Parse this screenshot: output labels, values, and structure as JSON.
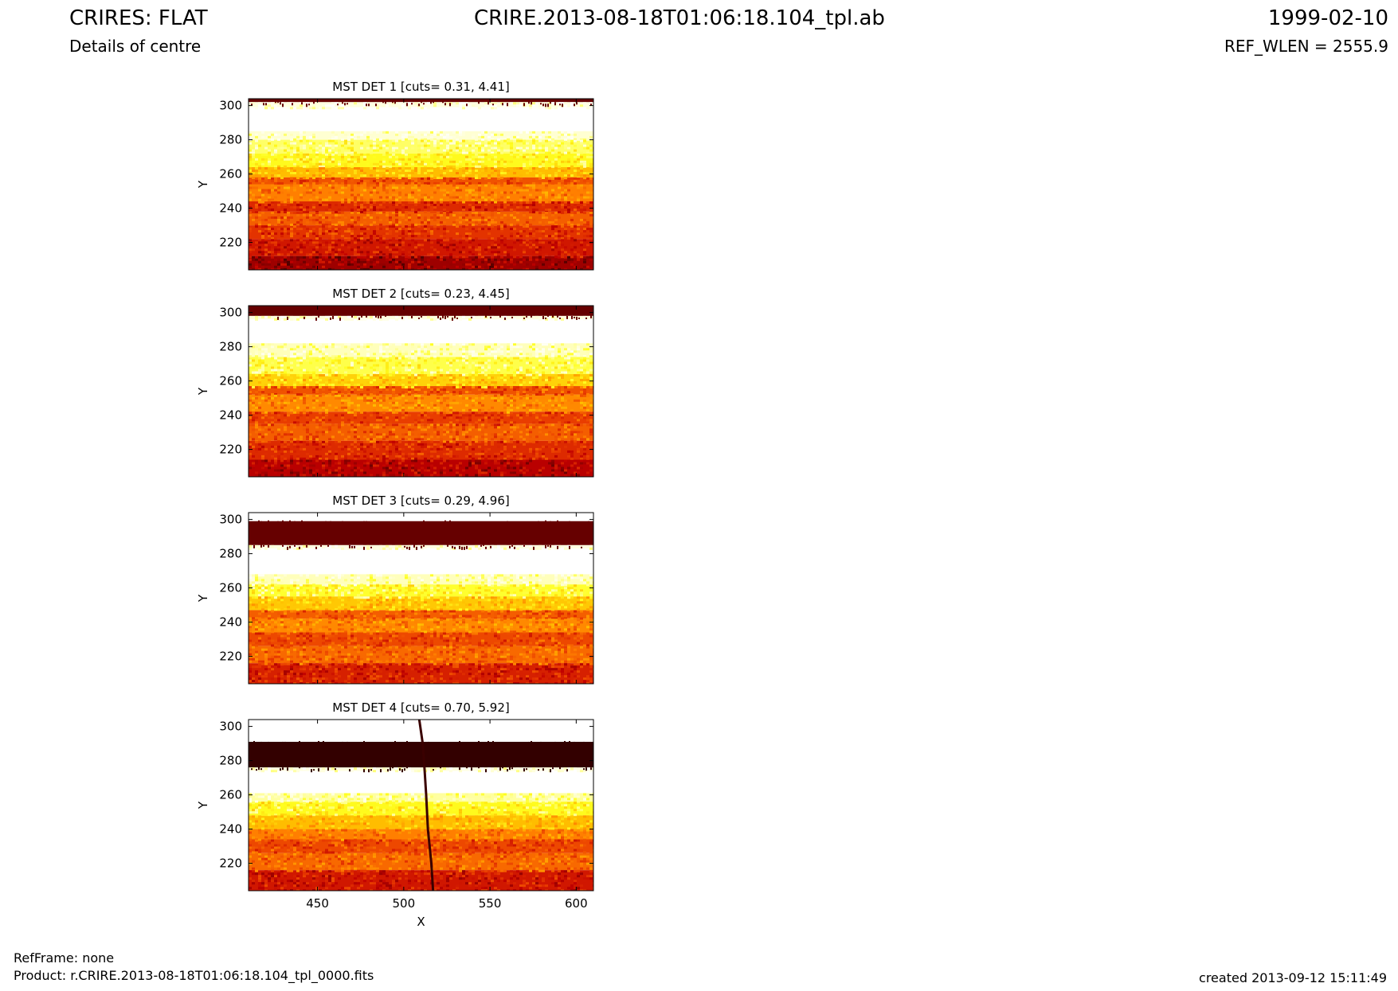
{
  "header": {
    "title": "CRIRES: FLAT",
    "subtitle": "Details of centre",
    "center_title": "CRIRE.2013-08-18T01:06:18.104_tpl.ab",
    "date": "1999-02-10",
    "ref_wlen": "REF_WLEN = 2555.9"
  },
  "footer": {
    "ref_frame": "RefFrame: none",
    "product": "Product: r.CRIRE.2013-08-18T01:06:18.104_tpl_0000.fits",
    "created": "created 2013-09-12 15:11:49"
  },
  "colors": {
    "cmap": [
      "#000000",
      "#6a0000",
      "#c00000",
      "#e83a00",
      "#ff7f00",
      "#ffc000",
      "#ffff20",
      "#ffffd0",
      "#ffffff"
    ]
  },
  "chart_data": [
    {
      "type": "heatmap",
      "title": "MST DET 1 [cuts= 0.31, 4.41]",
      "xlabel": "",
      "ylabel": "Y",
      "xlim": [
        410,
        610
      ],
      "ylim": [
        204,
        304
      ],
      "xticks": [
        450,
        500,
        550,
        600
      ],
      "yticks": [
        220,
        240,
        260,
        280,
        300
      ],
      "profile": [
        {
          "y_from": 302,
          "y_to": 304,
          "level": 0.12
        },
        {
          "y_from": 299,
          "y_to": 302,
          "level": 0.92
        },
        {
          "y_from": 285,
          "y_to": 299,
          "level": 1.0
        },
        {
          "y_from": 280,
          "y_to": 285,
          "level": 0.88
        },
        {
          "y_from": 272,
          "y_to": 280,
          "level": 0.8
        },
        {
          "y_from": 264,
          "y_to": 272,
          "level": 0.74
        },
        {
          "y_from": 258,
          "y_to": 264,
          "level": 0.62
        },
        {
          "y_from": 254,
          "y_to": 258,
          "level": 0.42
        },
        {
          "y_from": 244,
          "y_to": 254,
          "level": 0.5
        },
        {
          "y_from": 238,
          "y_to": 244,
          "level": 0.34
        },
        {
          "y_from": 230,
          "y_to": 238,
          "level": 0.44
        },
        {
          "y_from": 222,
          "y_to": 230,
          "level": 0.36
        },
        {
          "y_from": 212,
          "y_to": 222,
          "level": 0.3
        },
        {
          "y_from": 204,
          "y_to": 212,
          "level": 0.2
        }
      ]
    },
    {
      "type": "heatmap",
      "title": "MST DET 2 [cuts= 0.23, 4.45]",
      "xlabel": "",
      "ylabel": "Y",
      "xlim": [
        410,
        610
      ],
      "ylim": [
        204,
        304
      ],
      "xticks": [
        450,
        500,
        550,
        600
      ],
      "yticks": [
        220,
        240,
        260,
        280,
        300
      ],
      "profile": [
        {
          "y_from": 298,
          "y_to": 304,
          "level": 0.12
        },
        {
          "y_from": 296,
          "y_to": 298,
          "level": 0.92
        },
        {
          "y_from": 282,
          "y_to": 296,
          "level": 1.0
        },
        {
          "y_from": 274,
          "y_to": 282,
          "level": 0.86
        },
        {
          "y_from": 264,
          "y_to": 274,
          "level": 0.78
        },
        {
          "y_from": 257,
          "y_to": 264,
          "level": 0.66
        },
        {
          "y_from": 252,
          "y_to": 257,
          "level": 0.42
        },
        {
          "y_from": 242,
          "y_to": 252,
          "level": 0.52
        },
        {
          "y_from": 235,
          "y_to": 242,
          "level": 0.38
        },
        {
          "y_from": 225,
          "y_to": 235,
          "level": 0.44
        },
        {
          "y_from": 214,
          "y_to": 225,
          "level": 0.34
        },
        {
          "y_from": 204,
          "y_to": 214,
          "level": 0.24
        }
      ]
    },
    {
      "type": "heatmap",
      "title": "MST DET 3 [cuts= 0.29, 4.96]",
      "xlabel": "",
      "ylabel": "Y",
      "xlim": [
        410,
        610
      ],
      "ylim": [
        204,
        304
      ],
      "xticks": [
        450,
        500,
        550,
        600
      ],
      "yticks": [
        220,
        240,
        260,
        280,
        300
      ],
      "profile": [
        {
          "y_from": 299,
          "y_to": 304,
          "level": 1.0
        },
        {
          "y_from": 285,
          "y_to": 299,
          "level": 0.12
        },
        {
          "y_from": 283,
          "y_to": 285,
          "level": 0.92
        },
        {
          "y_from": 268,
          "y_to": 283,
          "level": 1.0
        },
        {
          "y_from": 262,
          "y_to": 268,
          "level": 0.86
        },
        {
          "y_from": 255,
          "y_to": 262,
          "level": 0.76
        },
        {
          "y_from": 247,
          "y_to": 255,
          "level": 0.64
        },
        {
          "y_from": 242,
          "y_to": 247,
          "level": 0.44
        },
        {
          "y_from": 234,
          "y_to": 242,
          "level": 0.52
        },
        {
          "y_from": 226,
          "y_to": 234,
          "level": 0.4
        },
        {
          "y_from": 216,
          "y_to": 226,
          "level": 0.46
        },
        {
          "y_from": 204,
          "y_to": 216,
          "level": 0.32
        }
      ]
    },
    {
      "type": "heatmap",
      "title": "MST DET 4 [cuts= 0.70, 5.92]",
      "xlabel": "X",
      "ylabel": "Y",
      "xlim": [
        410,
        610
      ],
      "ylim": [
        204,
        304
      ],
      "xticks": [
        450,
        500,
        550,
        600
      ],
      "yticks": [
        220,
        240,
        260,
        280,
        300
      ],
      "profile": [
        {
          "y_from": 291,
          "y_to": 304,
          "level": 1.0
        },
        {
          "y_from": 276,
          "y_to": 291,
          "level": 0.06
        },
        {
          "y_from": 274,
          "y_to": 276,
          "level": 0.92
        },
        {
          "y_from": 261,
          "y_to": 274,
          "level": 1.0
        },
        {
          "y_from": 256,
          "y_to": 261,
          "level": 0.84
        },
        {
          "y_from": 248,
          "y_to": 256,
          "level": 0.74
        },
        {
          "y_from": 240,
          "y_to": 248,
          "level": 0.62
        },
        {
          "y_from": 234,
          "y_to": 240,
          "level": 0.5
        },
        {
          "y_from": 226,
          "y_to": 234,
          "level": 0.4
        },
        {
          "y_from": 216,
          "y_to": 226,
          "level": 0.46
        },
        {
          "y_from": 204,
          "y_to": 216,
          "level": 0.3
        }
      ],
      "trace": [
        [
          509,
          304
        ],
        [
          511,
          290
        ],
        [
          512,
          276
        ],
        [
          513,
          260
        ],
        [
          514,
          240
        ],
        [
          516,
          220
        ],
        [
          517,
          204
        ]
      ]
    }
  ]
}
